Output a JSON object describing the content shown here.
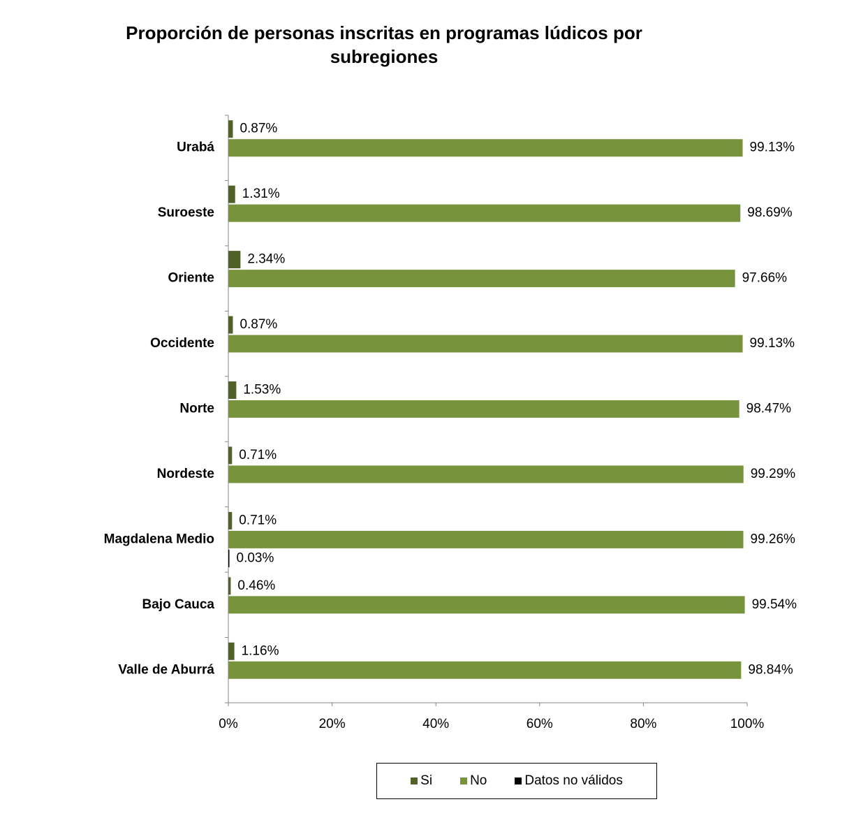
{
  "chart_data": {
    "type": "bar",
    "orientation": "horizontal",
    "title": "Proporción de personas inscritas en programas lúdicos por subregiones",
    "categories": [
      "Urabá",
      "Suroeste",
      "Oriente",
      "Occidente",
      "Norte",
      "Nordeste",
      "Magdalena Medio",
      "Bajo Cauca",
      "Valle de Aburrá"
    ],
    "series": [
      {
        "name": "Si",
        "color": "#4f6228",
        "values": [
          0.87,
          1.31,
          2.34,
          0.87,
          1.53,
          0.71,
          0.71,
          0.46,
          1.16
        ],
        "labels": [
          "0.87%",
          "1.31%",
          "2.34%",
          "0.87%",
          "1.53%",
          "0.71%",
          "0.71%",
          "0.46%",
          "1.16%"
        ]
      },
      {
        "name": "No",
        "color": "#77933c",
        "values": [
          99.13,
          98.69,
          97.66,
          99.13,
          98.47,
          99.29,
          99.26,
          99.54,
          98.84
        ],
        "labels": [
          "99.13%",
          "98.69%",
          "97.66%",
          "99.13%",
          "98.47%",
          "99.29%",
          "99.26%",
          "99.54%",
          "98.84%"
        ]
      },
      {
        "name": "Datos no válidos",
        "color": "#000000",
        "values": [
          null,
          null,
          null,
          null,
          null,
          null,
          0.03,
          null,
          null
        ],
        "labels": [
          null,
          null,
          null,
          null,
          null,
          null,
          "0.03%",
          null,
          null
        ]
      }
    ],
    "xlim": [
      0,
      100
    ],
    "xticks": [
      "0%",
      "20%",
      "40%",
      "60%",
      "80%",
      "100%"
    ],
    "grid": false,
    "legend_position": "bottom"
  }
}
